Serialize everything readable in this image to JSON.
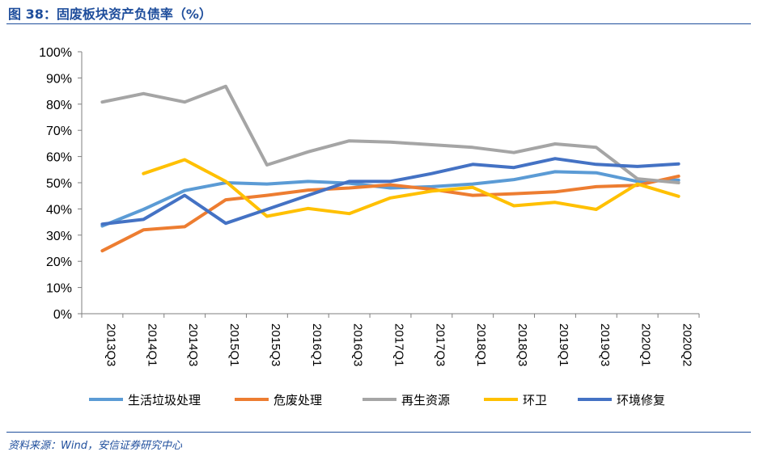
{
  "header": {
    "title": "图 38：固废板块资产负债率（%）"
  },
  "footer": {
    "source": "资料来源：Wind，安信证券研究中心"
  },
  "chart_data": {
    "type": "line",
    "title": "图 38：固废板块资产负债率（%）",
    "categories": [
      "2013Q3",
      "2014Q1",
      "2014Q3",
      "2015Q1",
      "2015Q3",
      "2016Q1",
      "2016Q3",
      "2017Q1",
      "2017Q3",
      "2018Q1",
      "2018Q3",
      "2019Q1",
      "2019Q3",
      "2020Q1",
      "2020Q2"
    ],
    "ylim": [
      0,
      100
    ],
    "yticks": [
      "0%",
      "10%",
      "20%",
      "30%",
      "40%",
      "50%",
      "60%",
      "70%",
      "80%",
      "90%",
      "100%"
    ],
    "grid": false,
    "legend": "bottom",
    "series": [
      {
        "name": "生活垃圾处理",
        "color": "#5b9bd5",
        "values": [
          33.5,
          39.8,
          47,
          50,
          49.5,
          50.5,
          49.8,
          48,
          48.5,
          49.5,
          51.2,
          54.2,
          53.8,
          50.5,
          51
        ]
      },
      {
        "name": "危废处理",
        "color": "#ed7d31",
        "values": [
          24,
          32,
          33.2,
          43.5,
          45.2,
          47.2,
          48,
          49.2,
          47.5,
          45.2,
          45.8,
          46.5,
          48.5,
          49,
          52.5
        ]
      },
      {
        "name": "再生资源",
        "color": "#a5a5a5",
        "values": [
          80.8,
          84,
          80.8,
          86.8,
          56.8,
          61.8,
          66,
          65.5,
          64.5,
          63.5,
          61.5,
          64.8,
          63.5,
          51.5,
          50
        ]
      },
      {
        "name": "环卫",
        "color": "#ffc000",
        "values": [
          null,
          53.5,
          58.8,
          50.5,
          37.2,
          40.2,
          38.2,
          44.2,
          46.8,
          48.2,
          41.2,
          42.5,
          39.8,
          49.5,
          44.8
        ]
      },
      {
        "name": "环境修复",
        "color": "#4472c4",
        "values": [
          34.2,
          36,
          45.2,
          34.5,
          39.8,
          45.2,
          50.5,
          50.5,
          53.5,
          57,
          55.8,
          59.2,
          57,
          56.2,
          57.2
        ]
      }
    ]
  }
}
